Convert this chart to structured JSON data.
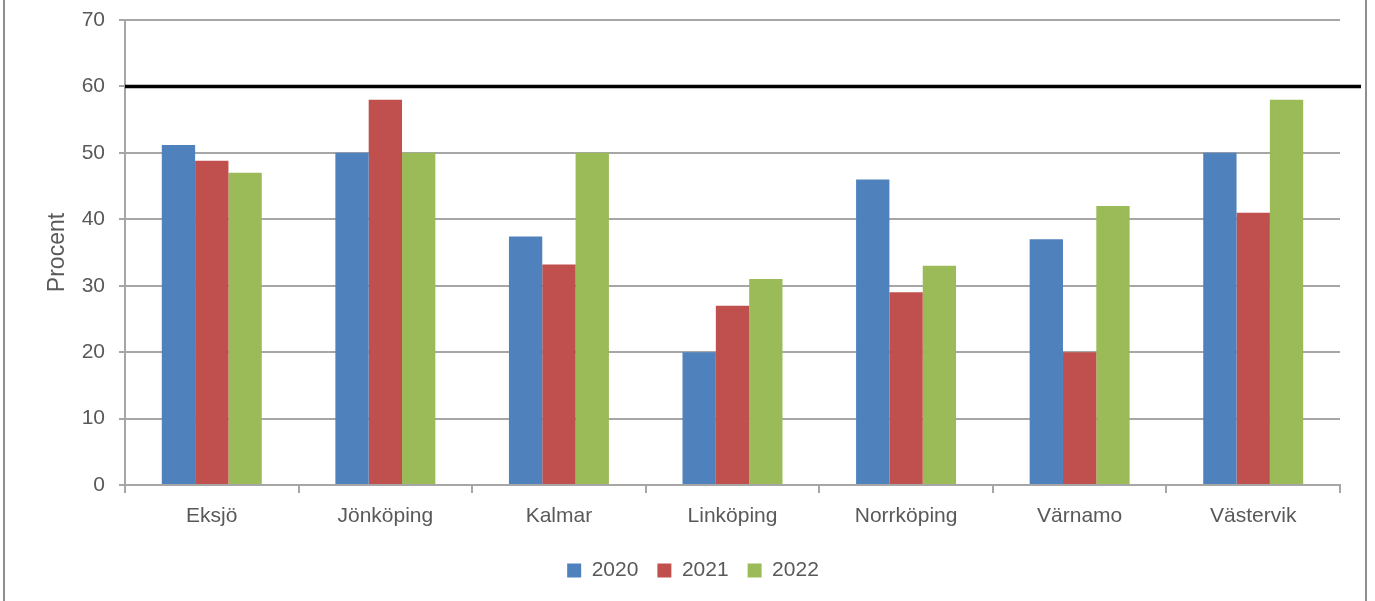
{
  "chart_data": {
    "type": "bar",
    "ylabel": "Procent",
    "categories": [
      "Eksjö",
      "Jönköping",
      "Kalmar",
      "Linköping",
      "Norrköping",
      "Värnamo",
      "Västervik"
    ],
    "series": [
      {
        "name": "2020",
        "color": "#4f81bd",
        "values": [
          51.2,
          50,
          37.4,
          20,
          46,
          37,
          50
        ]
      },
      {
        "name": "2021",
        "color": "#c0504d",
        "values": [
          48.8,
          58,
          33.2,
          27,
          29,
          20,
          41
        ]
      },
      {
        "name": "2022",
        "color": "#9bbb59",
        "values": [
          47,
          50,
          50,
          31,
          33,
          42,
          58
        ]
      }
    ],
    "ylim": [
      0,
      70
    ],
    "yticks": [
      0,
      10,
      20,
      30,
      40,
      50,
      60,
      70
    ],
    "grid": "y",
    "legend": "bottom",
    "ref_lines": [
      {
        "axis": "y",
        "value": 60,
        "color": "#000000"
      }
    ]
  }
}
